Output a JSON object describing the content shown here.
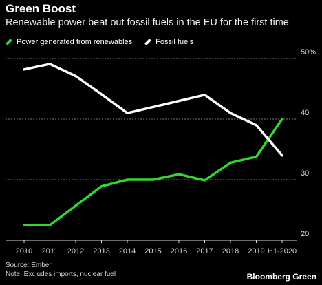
{
  "chart_data": {
    "type": "line",
    "title": "Green Boost",
    "subtitle": "Renewable power beat out fossil fuels in the EU for the first time",
    "categories": [
      "2010",
      "2011",
      "2012",
      "2013",
      "2014",
      "2015",
      "2016",
      "2017",
      "2018",
      "2019",
      "H1-2020"
    ],
    "series": [
      {
        "name": "Power generated from renewables",
        "color": "#2ed82e",
        "values": [
          22.5,
          22.5,
          25.7,
          28.9,
          30.0,
          30.0,
          30.9,
          29.9,
          32.8,
          33.8,
          40.0
        ]
      },
      {
        "name": "Fossil fuels",
        "color": "#ffffff",
        "values": [
          48.2,
          49.1,
          47.1,
          44.1,
          41.0,
          42.0,
          43.0,
          44.0,
          41.0,
          39.0,
          34.0
        ]
      }
    ],
    "yticks": [
      "50%",
      "40",
      "30",
      "20"
    ],
    "ytick_values": [
      50,
      40,
      30,
      20
    ],
    "ylim": [
      20,
      50
    ],
    "grid": true,
    "legend_position": "top-left",
    "xlabel": "",
    "ylabel": ""
  },
  "footer": {
    "source": "Source: Ember",
    "note": "Note: Excludes imports, nuclear fuel",
    "brand": "Bloomberg Green"
  }
}
